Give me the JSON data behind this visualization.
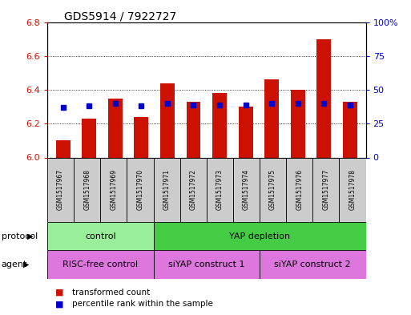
{
  "title": "GDS5914 / 7922727",
  "samples": [
    "GSM1517967",
    "GSM1517968",
    "GSM1517969",
    "GSM1517970",
    "GSM1517971",
    "GSM1517972",
    "GSM1517973",
    "GSM1517974",
    "GSM1517975",
    "GSM1517976",
    "GSM1517977",
    "GSM1517978"
  ],
  "transformed_counts": [
    6.1,
    6.23,
    6.35,
    6.24,
    6.44,
    6.33,
    6.38,
    6.3,
    6.46,
    6.4,
    6.7,
    6.33
  ],
  "percentile_ranks": [
    37,
    38,
    40,
    38,
    40,
    39,
    39,
    39,
    40,
    40,
    40,
    39
  ],
  "ylim_left": [
    6.0,
    6.8
  ],
  "ylim_right": [
    0,
    100
  ],
  "yticks_left": [
    6.0,
    6.2,
    6.4,
    6.6,
    6.8
  ],
  "yticks_right": [
    0,
    25,
    50,
    75,
    100
  ],
  "bar_color": "#cc1100",
  "dot_color": "#0000cc",
  "protocol_groups": [
    {
      "label": "control",
      "start": 0,
      "end": 3,
      "color": "#99ee99"
    },
    {
      "label": "YAP depletion",
      "start": 4,
      "end": 11,
      "color": "#44cc44"
    }
  ],
  "agent_groups": [
    {
      "label": "RISC-free control",
      "start": 0,
      "end": 3,
      "color": "#dd77dd"
    },
    {
      "label": "siYAP construct 1",
      "start": 4,
      "end": 7,
      "color": "#dd77dd"
    },
    {
      "label": "siYAP construct 2",
      "start": 8,
      "end": 11,
      "color": "#dd77dd"
    }
  ],
  "protocol_label": "protocol",
  "agent_label": "agent",
  "legend_red_label": "transformed count",
  "legend_blue_label": "percentile rank within the sample",
  "background_color": "#ffffff",
  "plot_bg_color": "#ffffff",
  "tick_label_color_left": "#cc1100",
  "tick_label_color_right": "#0000cc",
  "grid_color": "#000000",
  "sample_box_color": "#cccccc",
  "title_fontsize": 10,
  "bar_width": 0.55
}
